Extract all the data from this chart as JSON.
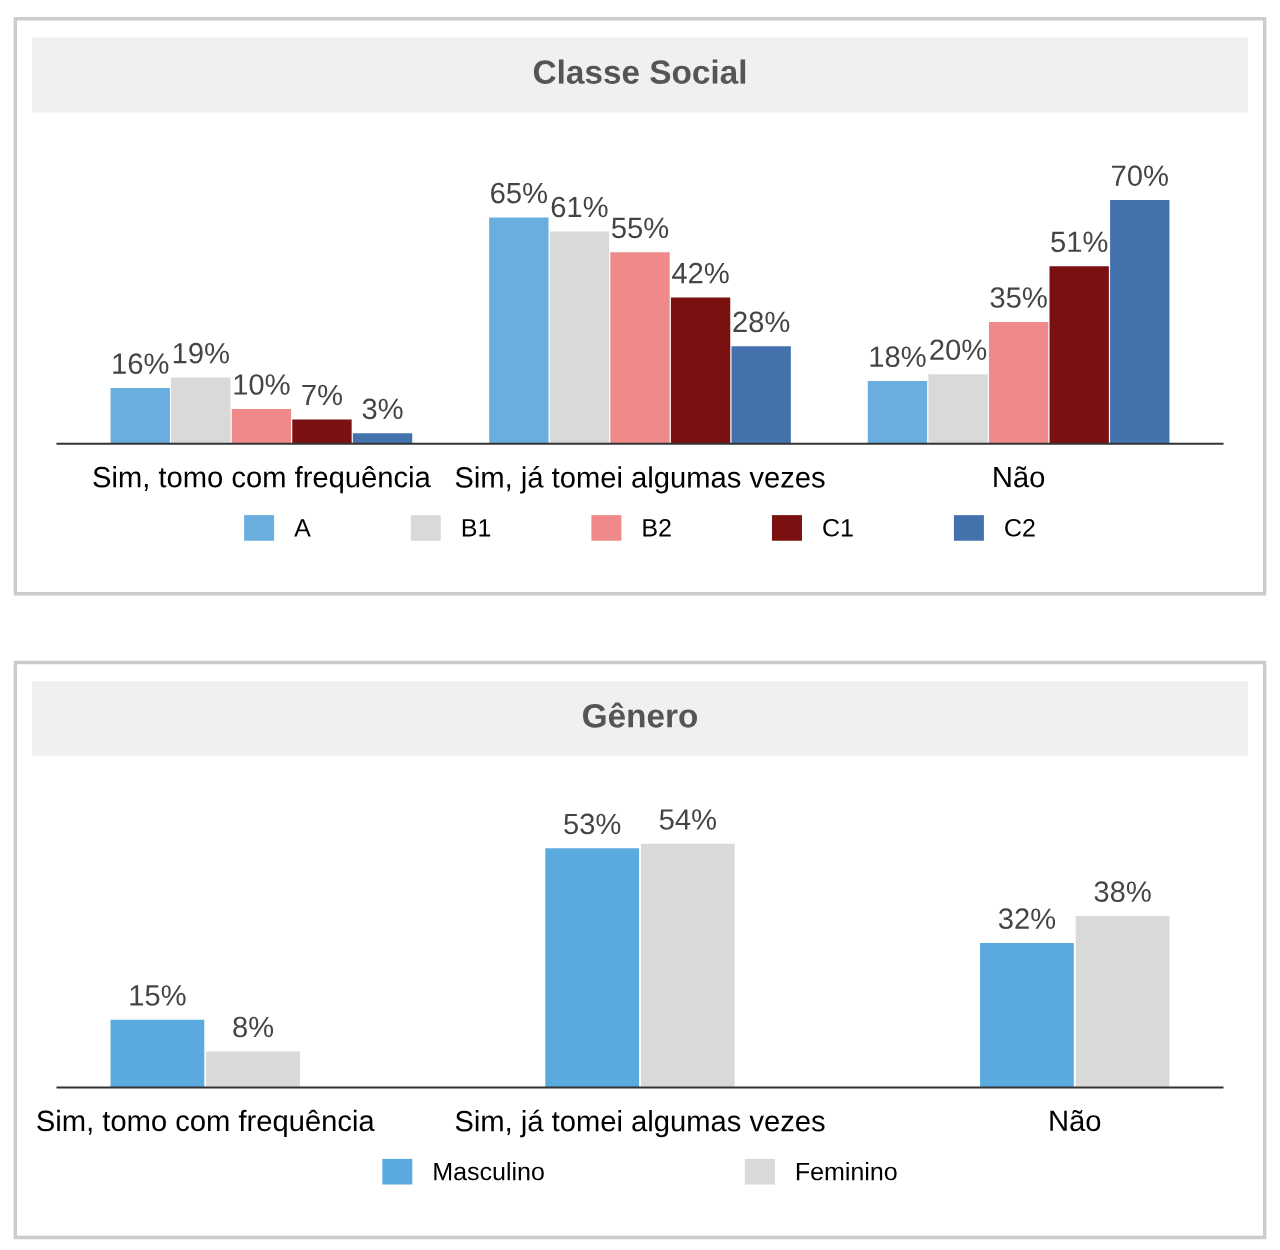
{
  "chart_data": [
    {
      "type": "bar",
      "title": "Classe Social",
      "categories": [
        "Sim, tomo com frequência",
        "Sim, já tomei algumas vezes",
        "Não"
      ],
      "legend": "bottom",
      "series": [
        {
          "name": "A",
          "color": "#6aaee0",
          "values": [
            16,
            65,
            18
          ],
          "value_labels": [
            "16%",
            "65%",
            "18%"
          ]
        },
        {
          "name": "B1",
          "color": "#d9d9d9",
          "values": [
            19,
            61,
            20
          ],
          "value_labels": [
            "19%",
            "61%",
            "20%"
          ]
        },
        {
          "name": "B2",
          "color": "#f08a8a",
          "values": [
            10,
            55,
            35
          ],
          "value_labels": [
            "10%",
            "55%",
            "35%"
          ]
        },
        {
          "name": "C1",
          "color": "#7a1010",
          "values": [
            7,
            42,
            51
          ],
          "value_labels": [
            "7%",
            "42%",
            "51%"
          ]
        },
        {
          "name": "C2",
          "color": "#4472ac",
          "values": [
            3,
            28,
            70
          ],
          "value_labels": [
            "3%",
            "28%",
            "70%"
          ]
        }
      ]
    },
    {
      "type": "bar",
      "title": "Gênero",
      "categories": [
        "Sim, tomo com frequência",
        "Sim, já tomei algumas vezes",
        "Não"
      ],
      "legend": "bottom",
      "series": [
        {
          "name": "Masculino",
          "color": "#5aaae0",
          "values": [
            15,
            53,
            32
          ],
          "value_labels": [
            "15%",
            "53%",
            "32%"
          ]
        },
        {
          "name": "Feminino",
          "color": "#d9d9d9",
          "values": [
            8,
            54,
            38
          ],
          "value_labels": [
            "8%",
            "54%",
            "38%"
          ]
        }
      ]
    }
  ]
}
